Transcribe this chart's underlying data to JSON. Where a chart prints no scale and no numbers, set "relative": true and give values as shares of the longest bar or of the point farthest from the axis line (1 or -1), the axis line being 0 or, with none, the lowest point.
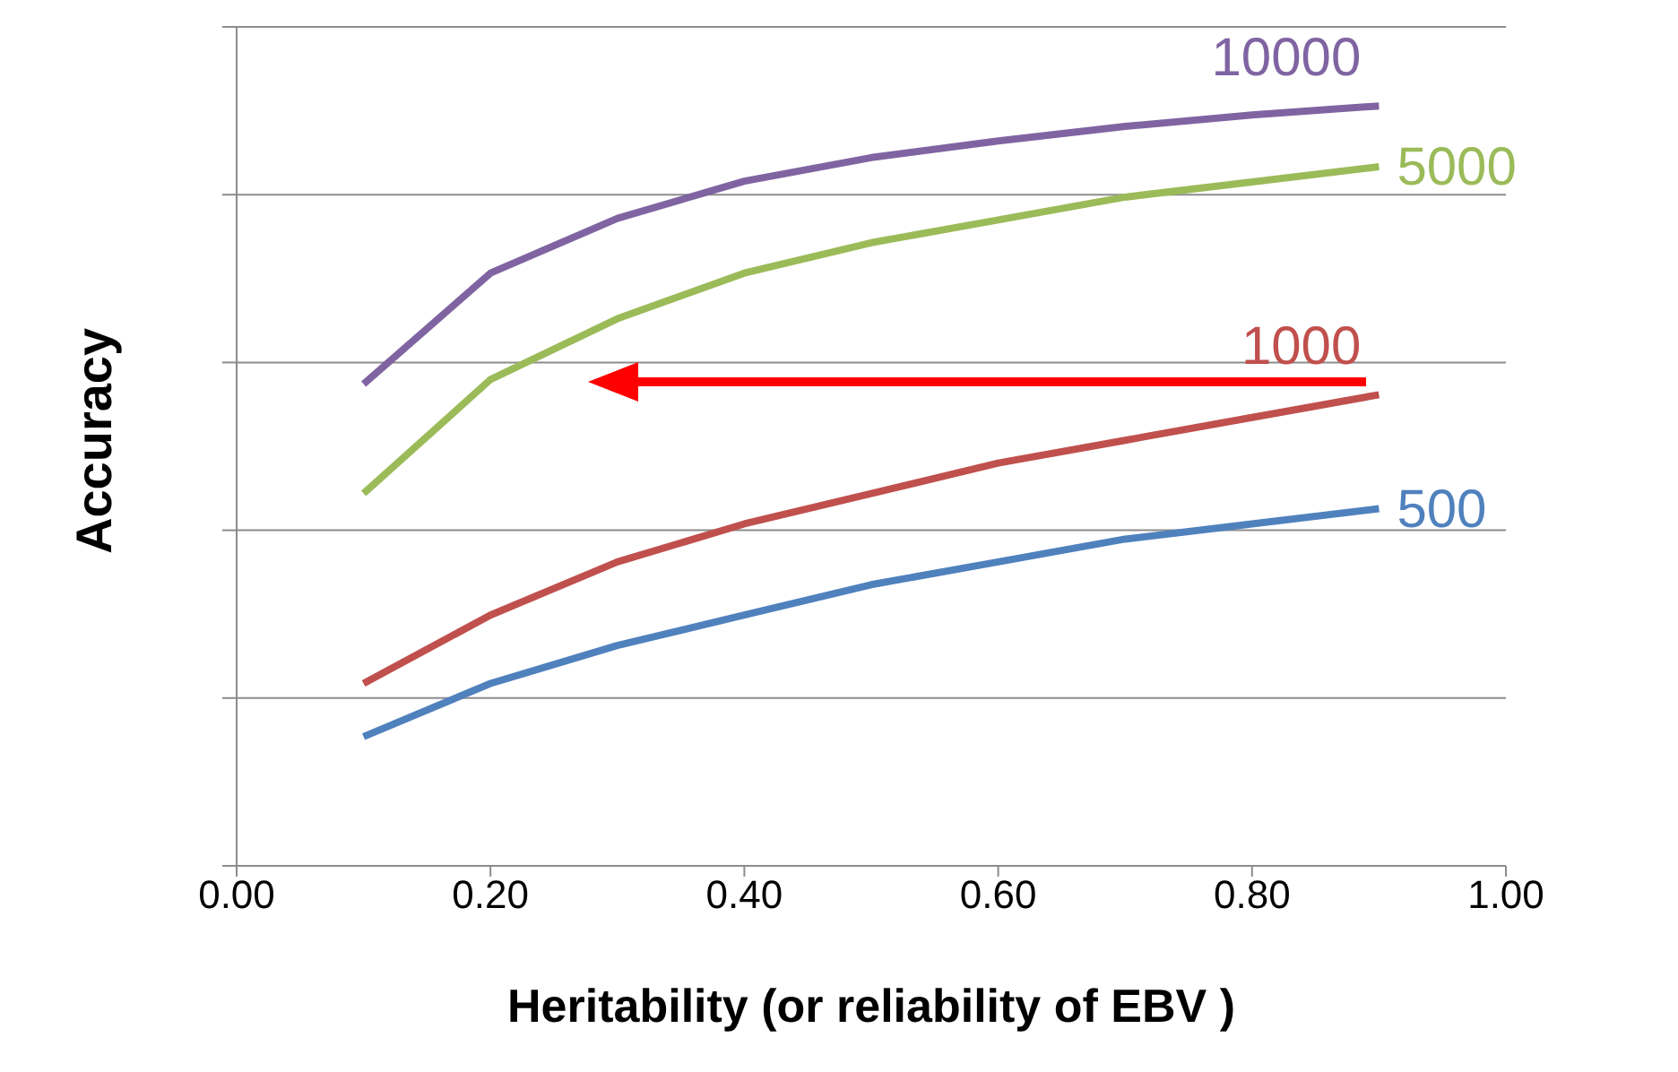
{
  "chart_data": {
    "type": "line",
    "xlabel": "Heritability (or reliability of EBV )",
    "ylabel": "Accuracy",
    "relative": true,
    "x": [
      0.1,
      0.2,
      0.3,
      0.4,
      0.5,
      0.6,
      0.7,
      0.8,
      0.9
    ],
    "xlim": [
      0,
      1
    ],
    "xticks": [
      {
        "value": 0,
        "label": "0.00"
      },
      {
        "value": 0.2,
        "label": "0.20"
      },
      {
        "value": 0.4,
        "label": "0.40"
      },
      {
        "value": 0.6,
        "label": "0.60"
      },
      {
        "value": 0.8,
        "label": "0.80"
      },
      {
        "value": 1,
        "label": "1.00"
      }
    ],
    "tick_labels": "x",
    "grid": "y",
    "marker": "none",
    "line_style": "solid",
    "legend": false,
    "series": [
      {
        "name": "10000",
        "color": "#8064a2",
        "values": [
          0.634,
          0.78,
          0.852,
          0.901,
          0.932,
          0.954,
          0.973,
          0.988,
          1
        ]
      },
      {
        "name": "5000",
        "color": "#9bbb59",
        "values": [
          0.49,
          0.64,
          0.72,
          0.78,
          0.82,
          0.85,
          0.88,
          0.9,
          0.92
        ]
      },
      {
        "name": "1000",
        "color": "#c0504d",
        "values": [
          0.24,
          0.33,
          0.4,
          0.45,
          0.49,
          0.53,
          0.56,
          0.59,
          0.62
        ]
      },
      {
        "name": "500",
        "color": "#4f81bd",
        "values": [
          0.17,
          0.24,
          0.29,
          0.33,
          0.37,
          0.4,
          0.43,
          0.45,
          0.47
        ]
      }
    ]
  }
}
